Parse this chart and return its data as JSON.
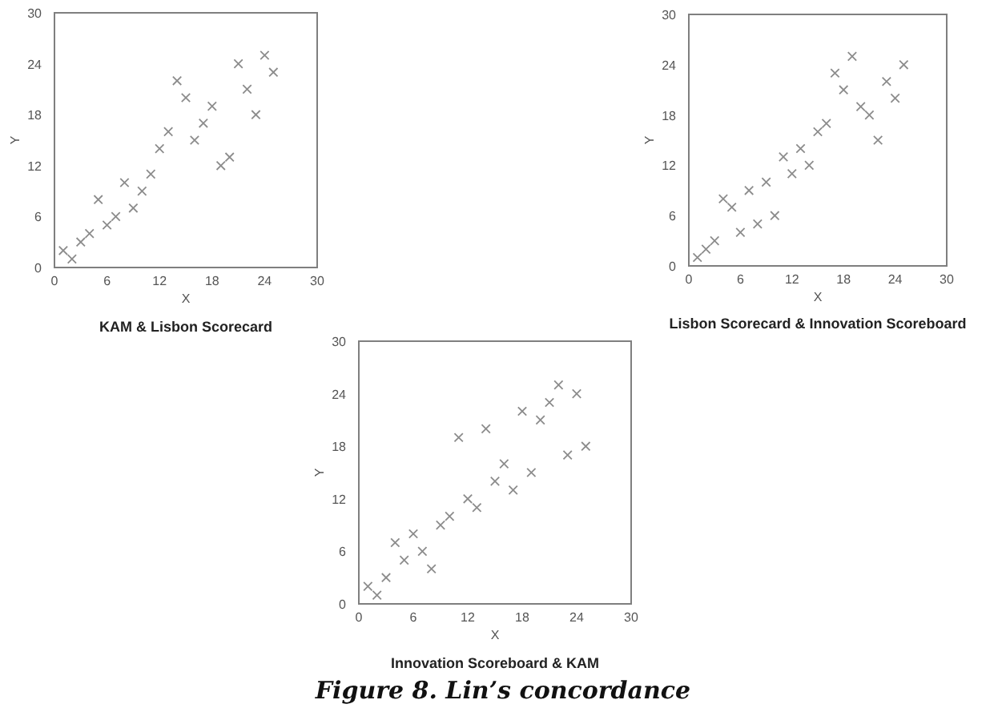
{
  "chart_data": [
    {
      "type": "scatter",
      "title": "KAM & Lisbon Scorecard",
      "xlabel": "X",
      "ylabel": "Y",
      "marker": "cross",
      "grid": false,
      "xlim": [
        0,
        30
      ],
      "ylim": [
        0,
        30
      ],
      "xticks": [
        0,
        6,
        12,
        18,
        24,
        30
      ],
      "yticks": [
        0,
        6,
        12,
        18,
        24,
        30
      ],
      "series": [
        {
          "color": "#8c8c8c",
          "x": [
            1,
            2,
            3,
            4,
            5,
            6,
            7,
            8,
            9,
            10,
            11,
            12,
            13,
            14,
            15,
            16,
            17,
            18,
            19,
            20,
            21,
            22,
            23,
            24,
            25
          ],
          "values": [
            2,
            1,
            3,
            4,
            8,
            5,
            6,
            10,
            7,
            9,
            11,
            14,
            16,
            22,
            20,
            15,
            17,
            19,
            12,
            13,
            24,
            21,
            18,
            25,
            23
          ]
        }
      ]
    },
    {
      "type": "scatter",
      "title": "Lisbon Scorecard & Innovation Scoreboard",
      "xlabel": "X",
      "ylabel": "Y",
      "marker": "cross",
      "grid": false,
      "xlim": [
        0,
        30
      ],
      "ylim": [
        0,
        30
      ],
      "xticks": [
        0,
        6,
        12,
        18,
        24,
        30
      ],
      "yticks": [
        0,
        6,
        12,
        18,
        24,
        30
      ],
      "series": [
        {
          "color": "#8c8c8c",
          "x": [
            1,
            2,
            3,
            4,
            5,
            6,
            7,
            8,
            9,
            10,
            11,
            12,
            13,
            14,
            15,
            16,
            17,
            18,
            19,
            20,
            21,
            22,
            23,
            24,
            25
          ],
          "values": [
            1,
            2,
            3,
            8,
            7,
            4,
            9,
            5,
            10,
            6,
            13,
            11,
            14,
            12,
            16,
            17,
            23,
            21,
            25,
            19,
            18,
            15,
            22,
            20,
            24
          ]
        }
      ]
    },
    {
      "type": "scatter",
      "title": "Innovation Scoreboard & KAM",
      "xlabel": "X",
      "ylabel": "Y",
      "marker": "cross",
      "grid": false,
      "xlim": [
        0,
        30
      ],
      "ylim": [
        0,
        30
      ],
      "xticks": [
        0,
        6,
        12,
        18,
        24,
        30
      ],
      "yticks": [
        0,
        6,
        12,
        18,
        24,
        30
      ],
      "annotations": [
        "Figure 8. Lin’s concordance"
      ],
      "series": [
        {
          "color": "#8c8c8c",
          "x": [
            1,
            2,
            3,
            4,
            5,
            6,
            7,
            8,
            9,
            10,
            11,
            12,
            13,
            14,
            15,
            16,
            17,
            18,
            19,
            20,
            21,
            22,
            23,
            24,
            25
          ],
          "values": [
            2,
            1,
            3,
            7,
            5,
            8,
            6,
            4,
            9,
            10,
            19,
            12,
            11,
            20,
            14,
            16,
            13,
            22,
            15,
            21,
            23,
            25,
            17,
            24,
            18
          ]
        }
      ]
    }
  ]
}
